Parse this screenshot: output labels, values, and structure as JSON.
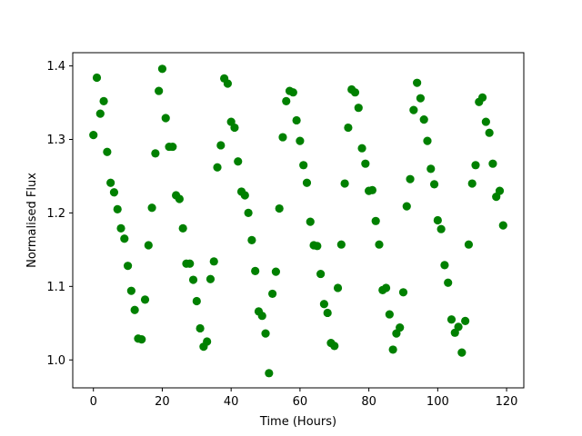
{
  "chart_data": {
    "type": "scatter",
    "xlabel": "Time (Hours)",
    "ylabel": "Normalised Flux",
    "xlim": [
      -6,
      125
    ],
    "ylim": [
      0.962,
      1.418
    ],
    "xticks": [
      0,
      20,
      40,
      60,
      80,
      100,
      120
    ],
    "yticks": [
      1.0,
      1.1,
      1.2,
      1.3,
      1.4
    ],
    "xtick_labels": [
      "0",
      "20",
      "40",
      "60",
      "80",
      "100",
      "120"
    ],
    "ytick_labels": [
      "1.0",
      "1.1",
      "1.2",
      "1.3",
      "1.4"
    ],
    "grid": false,
    "marker_color": "#008000",
    "points": [
      [
        0.0,
        1.306
      ],
      [
        1.0,
        1.384
      ],
      [
        2.0,
        1.335
      ],
      [
        3.0,
        1.352
      ],
      [
        4.0,
        1.283
      ],
      [
        5.0,
        1.241
      ],
      [
        6.0,
        1.228
      ],
      [
        7.0,
        1.205
      ],
      [
        8.0,
        1.179
      ],
      [
        9.0,
        1.165
      ],
      [
        10.0,
        1.128
      ],
      [
        11.0,
        1.094
      ],
      [
        12.0,
        1.068
      ],
      [
        13.0,
        1.029
      ],
      [
        14.0,
        1.028
      ],
      [
        15.0,
        1.082
      ],
      [
        16.0,
        1.156
      ],
      [
        17.0,
        1.207
      ],
      [
        18.0,
        1.281
      ],
      [
        19.0,
        1.366
      ],
      [
        20.0,
        1.396
      ],
      [
        21.0,
        1.329
      ],
      [
        22.0,
        1.29
      ],
      [
        23.0,
        1.29
      ],
      [
        24.0,
        1.224
      ],
      [
        25.0,
        1.219
      ],
      [
        26.0,
        1.179
      ],
      [
        27.0,
        1.131
      ],
      [
        28.0,
        1.131
      ],
      [
        29.0,
        1.109
      ],
      [
        30.0,
        1.08
      ],
      [
        31.0,
        1.043
      ],
      [
        32.0,
        1.018
      ],
      [
        33.0,
        1.025
      ],
      [
        34.0,
        1.11
      ],
      [
        35.0,
        1.134
      ],
      [
        36.0,
        1.262
      ],
      [
        37.0,
        1.292
      ],
      [
        38.0,
        1.383
      ],
      [
        39.0,
        1.376
      ],
      [
        40.0,
        1.324
      ],
      [
        41.0,
        1.316
      ],
      [
        42.0,
        1.27
      ],
      [
        43.0,
        1.229
      ],
      [
        44.0,
        1.224
      ],
      [
        45.0,
        1.2
      ],
      [
        46.0,
        1.163
      ],
      [
        47.0,
        1.121
      ],
      [
        48.0,
        1.066
      ],
      [
        49.0,
        1.06
      ],
      [
        50.0,
        1.036
      ],
      [
        51.0,
        0.982
      ],
      [
        52.0,
        1.09
      ],
      [
        53.0,
        1.12
      ],
      [
        54.0,
        1.206
      ],
      [
        55.0,
        1.303
      ],
      [
        56.0,
        1.352
      ],
      [
        57.0,
        1.366
      ],
      [
        58.0,
        1.364
      ],
      [
        59.0,
        1.326
      ],
      [
        60.0,
        1.298
      ],
      [
        61.0,
        1.265
      ],
      [
        62.0,
        1.241
      ],
      [
        63.0,
        1.188
      ],
      [
        64.0,
        1.156
      ],
      [
        65.0,
        1.155
      ],
      [
        66.0,
        1.117
      ],
      [
        67.0,
        1.076
      ],
      [
        68.0,
        1.064
      ],
      [
        69.0,
        1.023
      ],
      [
        70.0,
        1.019
      ],
      [
        71.0,
        1.098
      ],
      [
        72.0,
        1.157
      ],
      [
        73.0,
        1.24
      ],
      [
        74.0,
        1.316
      ],
      [
        75.0,
        1.368
      ],
      [
        76.0,
        1.364
      ],
      [
        77.0,
        1.343
      ],
      [
        78.0,
        1.288
      ],
      [
        79.0,
        1.267
      ],
      [
        80.0,
        1.23
      ],
      [
        81.0,
        1.231
      ],
      [
        82.0,
        1.189
      ],
      [
        83.0,
        1.157
      ],
      [
        84.0,
        1.095
      ],
      [
        85.0,
        1.098
      ],
      [
        86.0,
        1.062
      ],
      [
        87.0,
        1.014
      ],
      [
        88.0,
        1.036
      ],
      [
        89.0,
        1.044
      ],
      [
        90.0,
        1.092
      ],
      [
        91.0,
        1.209
      ],
      [
        92.0,
        1.246
      ],
      [
        93.0,
        1.34
      ],
      [
        94.0,
        1.377
      ],
      [
        95.0,
        1.356
      ],
      [
        96.0,
        1.327
      ],
      [
        97.0,
        1.298
      ],
      [
        98.0,
        1.26
      ],
      [
        99.0,
        1.239
      ],
      [
        100.0,
        1.19
      ],
      [
        101.0,
        1.178
      ],
      [
        102.0,
        1.129
      ],
      [
        103.0,
        1.105
      ],
      [
        104.0,
        1.055
      ],
      [
        105.0,
        1.037
      ],
      [
        106.0,
        1.045
      ],
      [
        107.0,
        1.01
      ],
      [
        108.0,
        1.053
      ],
      [
        109.0,
        1.157
      ],
      [
        110.0,
        1.24
      ],
      [
        111.0,
        1.265
      ],
      [
        112.0,
        1.351
      ],
      [
        113.0,
        1.357
      ],
      [
        114.0,
        1.324
      ],
      [
        115.0,
        1.309
      ],
      [
        116.0,
        1.267
      ],
      [
        117.0,
        1.222
      ],
      [
        118.0,
        1.23
      ],
      [
        119.0,
        1.183
      ]
    ]
  }
}
